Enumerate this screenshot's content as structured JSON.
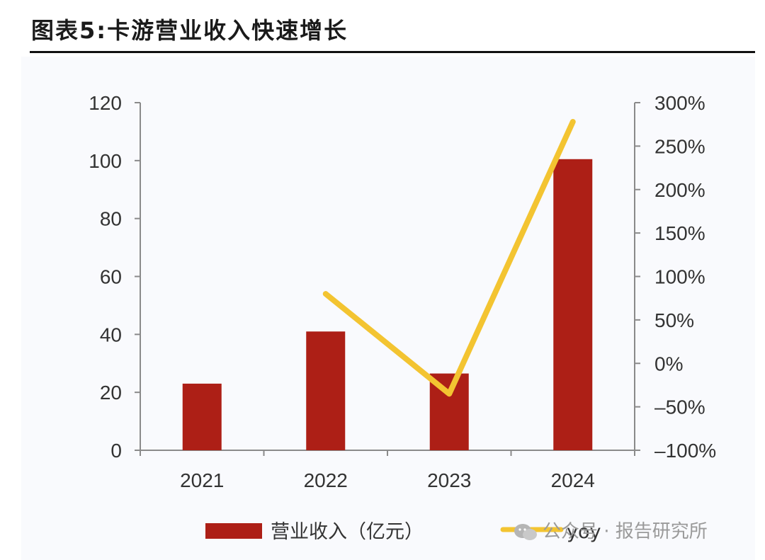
{
  "title": "图表5:卡游营业收入快速增长",
  "watermark": "公众号 · 报告研究所",
  "colors": {
    "bar": "#ad1f16",
    "line": "#f3c431"
  },
  "chart_data": {
    "type": "bar",
    "categories": [
      "2021",
      "2022",
      "2023",
      "2024"
    ],
    "series": [
      {
        "name": "营业收入（亿元）",
        "type": "bar",
        "axis": "left",
        "values": [
          23,
          41,
          26.5,
          100.5
        ]
      },
      {
        "name": "yoy",
        "type": "line",
        "axis": "right",
        "values": [
          null,
          80,
          -35,
          278
        ]
      }
    ],
    "left_axis": {
      "ylim": [
        0,
        120
      ],
      "ticks": [
        "0",
        "20",
        "40",
        "60",
        "80",
        "100",
        "120"
      ]
    },
    "right_axis": {
      "ylim": [
        -100,
        300
      ],
      "ticks": [
        "-100%",
        "-50%",
        "0%",
        "50%",
        "100%",
        "150%",
        "200%",
        "250%",
        "300%"
      ]
    },
    "grid": false,
    "legend": "bottom"
  }
}
